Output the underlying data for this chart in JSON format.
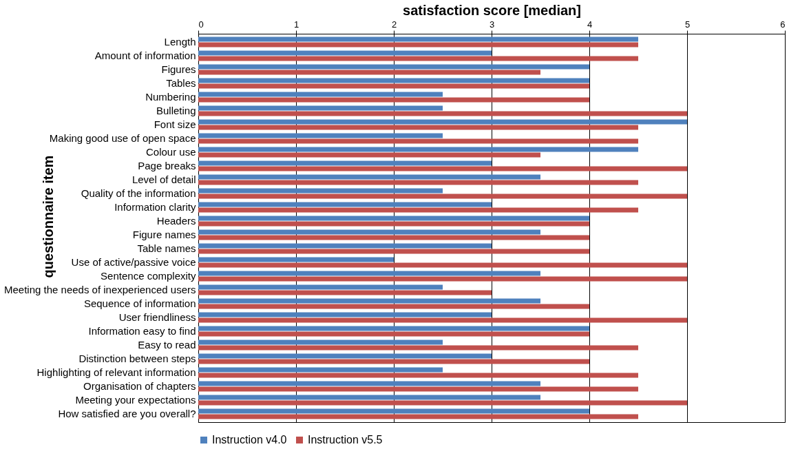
{
  "chart_data": {
    "type": "bar",
    "orientation": "horizontal",
    "xlabel": "satisfaction score [median]",
    "ylabel": "questionnaire item",
    "categories": [
      "Length",
      "Amount of information",
      "Figures",
      "Tables",
      "Numbering",
      "Bulleting",
      "Font size",
      "Making good use of open space",
      "Colour use",
      "Page breaks",
      "Level of detail",
      "Quality of the information",
      "Information clarity",
      "Headers",
      "Figure names",
      "Table names",
      "Use of active/passive voice",
      "Sentence complexity",
      "Meeting the needs of inexperienced users",
      "Sequence of information",
      "User friendliness",
      "Information easy to find",
      "Easy to read",
      "Distinction between steps",
      "Highlighting of relevant information",
      "Organisation of chapters",
      "Meeting your expectations",
      "How satisfied are you overall?"
    ],
    "series": [
      {
        "name": "Instruction v4.0",
        "color": "#4f81bd",
        "values": [
          4.5,
          3,
          4,
          4,
          2.5,
          2.5,
          5,
          2.5,
          4.5,
          3,
          3.5,
          2.5,
          3,
          4,
          3.5,
          3,
          2,
          3.5,
          2.5,
          3.5,
          3,
          4,
          2.5,
          3,
          2.5,
          3.5,
          3.5,
          4
        ]
      },
      {
        "name": "Instruction v5.5",
        "color": "#c0504d",
        "values": [
          4.5,
          4.5,
          3.5,
          4,
          4,
          5,
          4.5,
          4.5,
          3.5,
          5,
          4.5,
          5,
          4.5,
          4,
          4,
          4,
          5,
          5,
          3,
          4,
          5,
          4,
          4.5,
          4,
          4.5,
          4.5,
          5,
          4.5
        ]
      }
    ],
    "xlim": [
      0,
      6
    ],
    "xticks": [
      0,
      1,
      2,
      3,
      4,
      5,
      6
    ],
    "grid": "x",
    "legend": "bottom"
  }
}
